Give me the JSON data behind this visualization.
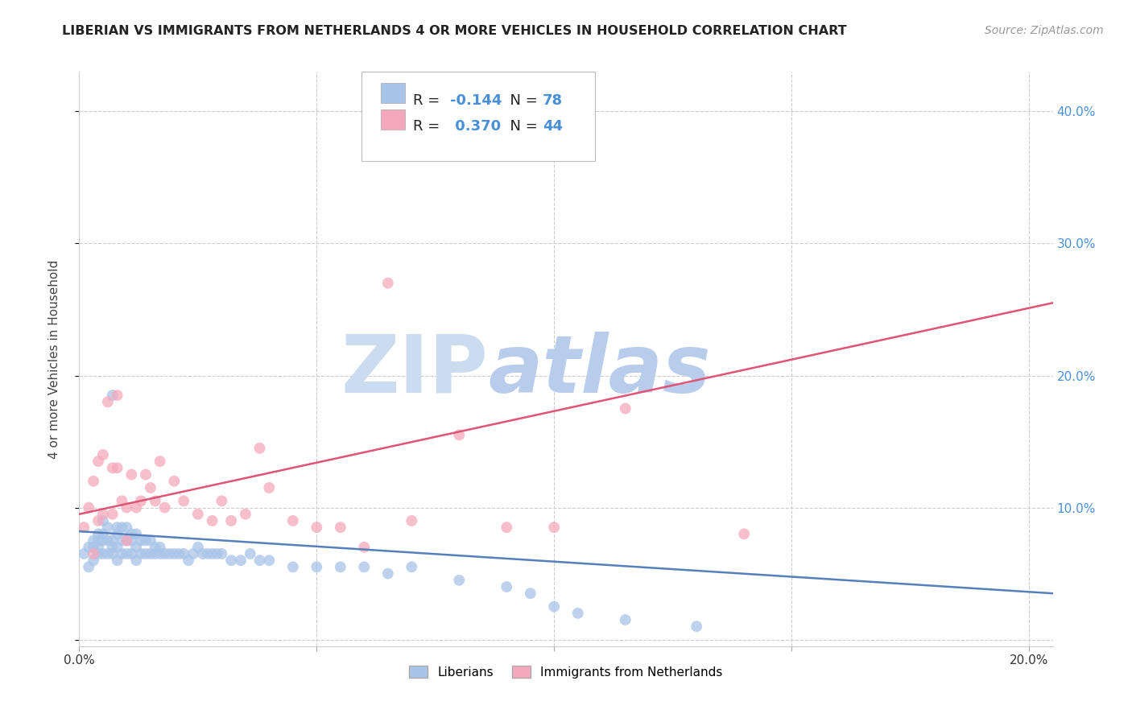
{
  "title": "LIBERIAN VS IMMIGRANTS FROM NETHERLANDS 4 OR MORE VEHICLES IN HOUSEHOLD CORRELATION CHART",
  "source": "Source: ZipAtlas.com",
  "ylabel": "4 or more Vehicles in Household",
  "legend_label1": "Liberians",
  "legend_label2": "Immigrants from Netherlands",
  "R1": -0.144,
  "N1": 78,
  "R2": 0.37,
  "N2": 44,
  "blue_color": "#a8c4e8",
  "pink_color": "#f5a8bc",
  "blue_line_color": "#5580bb",
  "pink_line_color": "#e05575",
  "watermark_zip": "ZIP",
  "watermark_atlas": "atlas",
  "watermark_color": "#dce8f5",
  "xlim": [
    0.0,
    0.205
  ],
  "ylim": [
    -0.005,
    0.43
  ],
  "blue_scatter_x": [
    0.001,
    0.002,
    0.002,
    0.003,
    0.003,
    0.003,
    0.004,
    0.004,
    0.004,
    0.004,
    0.005,
    0.005,
    0.005,
    0.005,
    0.006,
    0.006,
    0.006,
    0.007,
    0.007,
    0.007,
    0.007,
    0.008,
    0.008,
    0.008,
    0.008,
    0.009,
    0.009,
    0.009,
    0.01,
    0.01,
    0.01,
    0.011,
    0.011,
    0.011,
    0.012,
    0.012,
    0.012,
    0.013,
    0.013,
    0.014,
    0.014,
    0.015,
    0.015,
    0.016,
    0.016,
    0.017,
    0.017,
    0.018,
    0.019,
    0.02,
    0.021,
    0.022,
    0.023,
    0.024,
    0.025,
    0.026,
    0.027,
    0.028,
    0.029,
    0.03,
    0.032,
    0.034,
    0.036,
    0.038,
    0.04,
    0.045,
    0.05,
    0.055,
    0.06,
    0.065,
    0.07,
    0.08,
    0.09,
    0.095,
    0.1,
    0.105,
    0.115,
    0.13
  ],
  "blue_scatter_y": [
    0.065,
    0.055,
    0.07,
    0.06,
    0.07,
    0.075,
    0.065,
    0.07,
    0.075,
    0.08,
    0.065,
    0.075,
    0.08,
    0.09,
    0.065,
    0.075,
    0.085,
    0.065,
    0.07,
    0.075,
    0.185,
    0.06,
    0.07,
    0.08,
    0.085,
    0.065,
    0.075,
    0.085,
    0.065,
    0.075,
    0.085,
    0.065,
    0.075,
    0.08,
    0.06,
    0.07,
    0.08,
    0.065,
    0.075,
    0.065,
    0.075,
    0.065,
    0.075,
    0.065,
    0.07,
    0.065,
    0.07,
    0.065,
    0.065,
    0.065,
    0.065,
    0.065,
    0.06,
    0.065,
    0.07,
    0.065,
    0.065,
    0.065,
    0.065,
    0.065,
    0.06,
    0.06,
    0.065,
    0.06,
    0.06,
    0.055,
    0.055,
    0.055,
    0.055,
    0.05,
    0.055,
    0.045,
    0.04,
    0.035,
    0.025,
    0.02,
    0.015,
    0.01
  ],
  "pink_scatter_x": [
    0.001,
    0.002,
    0.003,
    0.003,
    0.004,
    0.004,
    0.005,
    0.005,
    0.006,
    0.007,
    0.007,
    0.008,
    0.008,
    0.009,
    0.01,
    0.01,
    0.011,
    0.012,
    0.013,
    0.014,
    0.015,
    0.016,
    0.017,
    0.018,
    0.02,
    0.022,
    0.025,
    0.028,
    0.03,
    0.032,
    0.035,
    0.038,
    0.04,
    0.045,
    0.05,
    0.055,
    0.06,
    0.065,
    0.07,
    0.08,
    0.09,
    0.1,
    0.115,
    0.14
  ],
  "pink_scatter_y": [
    0.085,
    0.1,
    0.065,
    0.12,
    0.09,
    0.135,
    0.095,
    0.14,
    0.18,
    0.095,
    0.13,
    0.13,
    0.185,
    0.105,
    0.075,
    0.1,
    0.125,
    0.1,
    0.105,
    0.125,
    0.115,
    0.105,
    0.135,
    0.1,
    0.12,
    0.105,
    0.095,
    0.09,
    0.105,
    0.09,
    0.095,
    0.145,
    0.115,
    0.09,
    0.085,
    0.085,
    0.07,
    0.27,
    0.09,
    0.155,
    0.085,
    0.085,
    0.175,
    0.08
  ],
  "blue_trend": [
    0.082,
    0.035
  ],
  "pink_trend": [
    0.095,
    0.255
  ]
}
